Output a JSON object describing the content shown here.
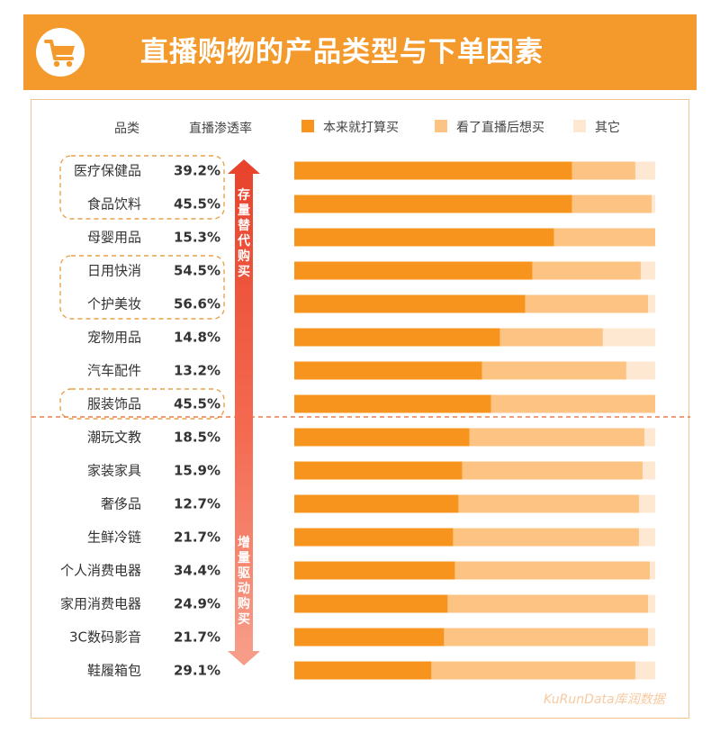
{
  "header": {
    "title": "直播购物的产品类型与下单因素",
    "icon": "shopping-cart-icon"
  },
  "chart_data": {
    "type": "bar",
    "orientation": "horizontal",
    "stacked": true,
    "percent_stacked": true,
    "column_headers": {
      "category": "品类",
      "penetration": "直播渗透率"
    },
    "categories": [
      "医疗保健品",
      "食品饮料",
      "母婴用品",
      "日用快消",
      "个护美妆",
      "宠物用品",
      "汽车配件",
      "服装饰品",
      "潮玩文教",
      "家装家具",
      "奢侈品",
      "生鲜冷链",
      "个人消费电器",
      "家用消费电器",
      "3C数码影音",
      "鞋履箱包"
    ],
    "penetration_rate": [
      "39.2%",
      "45.5%",
      "15.3%",
      "54.5%",
      "56.6%",
      "14.8%",
      "13.2%",
      "45.5%",
      "18.5%",
      "15.9%",
      "12.7%",
      "21.7%",
      "34.4%",
      "24.9%",
      "21.7%",
      "29.1%"
    ],
    "highlighted_categories": [
      [
        "医疗保健品",
        "食品饮料"
      ],
      [
        "日用快消",
        "个护美妆"
      ],
      [
        "服装饰品"
      ]
    ],
    "series": [
      {
        "name": "本来就打算买",
        "color": "#f7941d",
        "values": [
          77,
          77,
          72,
          66,
          64,
          57,
          52,
          54.5,
          48.5,
          46.5,
          45.5,
          44,
          44.5,
          42.5,
          41.5,
          38
        ]
      },
      {
        "name": "看了直播后想买",
        "color": "#fdc382",
        "values": [
          17.5,
          22,
          28,
          30,
          34,
          28.5,
          40,
          45.5,
          48.5,
          50,
          50,
          51.5,
          54,
          55.5,
          56.5,
          56.5
        ]
      },
      {
        "name": "其它",
        "color": "#fee8d2",
        "values": [
          5.5,
          1,
          0,
          4,
          2,
          14.5,
          8,
          0,
          3,
          3.5,
          4.5,
          4.5,
          1.5,
          2,
          2,
          5.5
        ]
      }
    ],
    "xlim": [
      0,
      100
    ],
    "legend_position": "top",
    "grid": false,
    "divider_between": [
      "服装饰品",
      "潮玩文教"
    ],
    "annotations": {
      "top_group": "存量替代购买",
      "bottom_group": "增量驱动购买"
    }
  },
  "watermark": "KuRunData库润数据"
}
